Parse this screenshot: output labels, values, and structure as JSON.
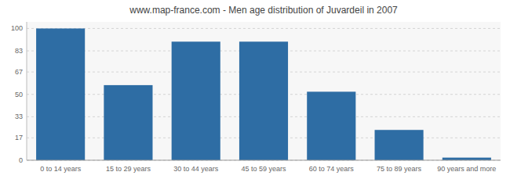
{
  "chart_data": {
    "type": "bar",
    "title": "www.map-france.com - Men age distribution of Juvardeil in 2007",
    "categories": [
      "0 to 14 years",
      "15 to 29 years",
      "30 to 44 years",
      "45 to 59 years",
      "60 to 74 years",
      "75 to 89 years",
      "90 years and more"
    ],
    "values": [
      100,
      57,
      90,
      90,
      52,
      23,
      2
    ],
    "color": "#2e6da4",
    "ylim": [
      0,
      105
    ],
    "yticks": [
      0,
      17,
      33,
      50,
      67,
      83,
      100
    ],
    "grid": true
  }
}
